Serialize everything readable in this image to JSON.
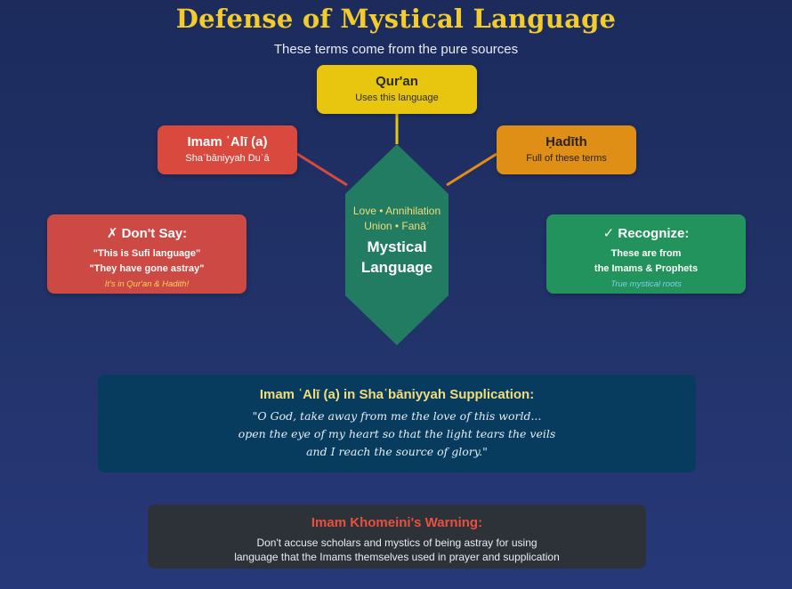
{
  "title": "Defense of Mystical Language",
  "subtitle": "These terms come from the pure sources",
  "center": {
    "line1": "Love • Annihilation",
    "line2": "Union • Fanāʾ",
    "main1": "Mystical",
    "main2": "Language",
    "color": "#217c62"
  },
  "sources": {
    "quran": {
      "heading": "Qur'an",
      "sub": "Uses this language",
      "color": "#e8c60f"
    },
    "ali": {
      "heading": "Imam ʿAlī (a)",
      "sub": "Shaʿbāniyyah Duʿā",
      "color": "#d9493e"
    },
    "hadith": {
      "heading": "Ḥadīth",
      "sub": "Full of these terms",
      "color": "#df8e16"
    }
  },
  "dont_say": {
    "heading": "✗ Don't Say:",
    "line1": "\"This is Sufi language\"",
    "line2": "\"They have gone astray\"",
    "note": "It's in Qur'an & Hadith!",
    "color": "#cd4a44"
  },
  "recognize": {
    "heading": "✓ Recognize:",
    "line1": "These are from",
    "line2": "the Imams & Prophets",
    "note": "True mystical roots",
    "color": "#23935d"
  },
  "quote": {
    "heading": "Imam ʿAlī (a) in Shaʿbāniyyah Supplication:",
    "lines": [
      "\"O God, take away from me the love of this world...",
      "open the eye of my heart so that the light tears the veils",
      "and I reach the source of glory.\""
    ]
  },
  "warning": {
    "heading": "Imam Khomeini's Warning:",
    "lines": [
      "Don't accuse scholars and mystics of being astray for using",
      "language that the Imams themselves used in prayer and supplication"
    ]
  }
}
